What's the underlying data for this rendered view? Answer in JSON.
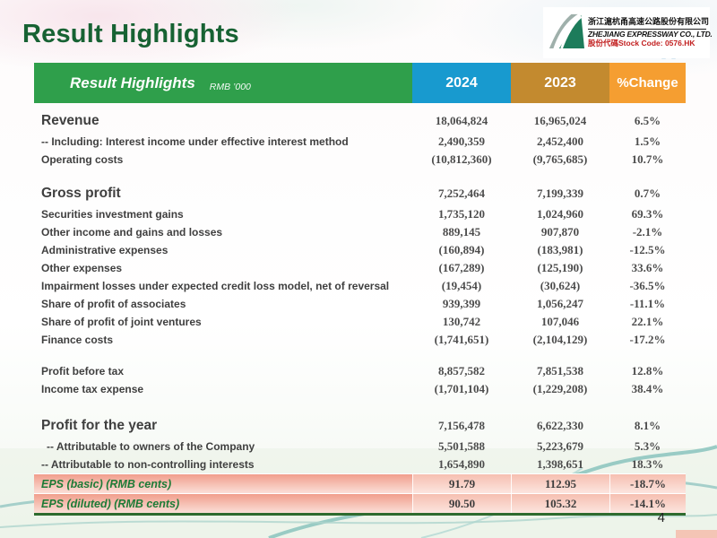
{
  "slide": {
    "title": "Result Highlights",
    "page_number": "4"
  },
  "logo": {
    "company_name_zh": "浙江滬杭甬高速公路股份有限公司",
    "company_name_en": "ZHEJIANG EXPRESSWAY CO., LTD.",
    "stock_code_line": "股份代碼Stock Code: 0576.HK"
  },
  "table": {
    "header": {
      "title": "Result Highlights",
      "unit": "RMB ’000",
      "col_2024": "2024",
      "col_2023": "2023",
      "col_change": "%Change"
    },
    "colors": {
      "header_green": "#2f9f4b",
      "col_2024_blue": "#189acf",
      "col_2023_ochre": "#c38a2f",
      "col_change_orange": "#f59e31",
      "title_green": "#176233",
      "eps_label_green": "#1e7b37",
      "eps_row_salmon": "#f19e8c",
      "bottom_line_green": "#2e6b2f",
      "stock_code_red": "#c22020"
    },
    "rows": [
      {
        "label": "Revenue",
        "v2024": "18,064,824",
        "v2023": "16,965,024",
        "change": "6.5%",
        "type": "big"
      },
      {
        "label": "-- Including: Interest income under effective interest method",
        "v2024": "2,490,359",
        "v2023": "2,452,400",
        "change": "1.5%",
        "type": "normal"
      },
      {
        "label": "Operating costs",
        "v2024": "(10,812,360)",
        "v2023": "(9,765,685)",
        "change": "10.7%",
        "type": "normal"
      },
      {
        "label": "Gross profit",
        "v2024": "7,252,464",
        "v2023": "7,199,339",
        "change": "0.7%",
        "type": "big",
        "gap_before": true
      },
      {
        "label": "Securities investment gains",
        "v2024": "1,735,120",
        "v2023": "1,024,960",
        "change": "69.3%",
        "type": "normal"
      },
      {
        "label": "Other income and gains and losses",
        "v2024": "889,145",
        "v2023": "907,870",
        "change": "-2.1%",
        "type": "normal"
      },
      {
        "label": "Administrative expenses",
        "v2024": "(160,894)",
        "v2023": "(183,981)",
        "change": "-12.5%",
        "type": "normal"
      },
      {
        "label": "Other expenses",
        "v2024": "(167,289)",
        "v2023": "(125,190)",
        "change": "33.6%",
        "type": "normal"
      },
      {
        "label": "Impairment losses under expected credit loss model, net of reversal",
        "v2024": "(19,454)",
        "v2023": "(30,624)",
        "change": "-36.5%",
        "type": "normal"
      },
      {
        "label": "Share of profit of associates",
        "v2024": "939,399",
        "v2023": "1,056,247",
        "change": "-11.1%",
        "type": "normal"
      },
      {
        "label": "Share of profit of  joint ventures",
        "v2024": "130,742",
        "v2023": "107,046",
        "change": "22.1%",
        "type": "normal"
      },
      {
        "label": "Finance costs",
        "v2024": "(1,741,651)",
        "v2023": "(2,104,129)",
        "change": "-17.2%",
        "type": "normal"
      },
      {
        "label": "Profit before tax",
        "v2024": "8,857,582",
        "v2023": "7,851,538",
        "change": "12.8%",
        "type": "normal",
        "gap_before": true
      },
      {
        "label": "Income tax expense",
        "v2024": "(1,701,104)",
        "v2023": "(1,229,208)",
        "change": "38.4%",
        "type": "normal"
      },
      {
        "label": "Profit for the year",
        "v2024": "7,156,478",
        "v2023": "6,622,330",
        "change": "8.1%",
        "type": "big",
        "gap_before": true,
        "gap_large": true
      },
      {
        "label": "-- Attributable to owners of the Company",
        "v2024": "5,501,588",
        "v2023": "5,223,679",
        "change": "5.3%",
        "type": "normal",
        "indent": true
      },
      {
        "label": "-- Attributable to non-controlling interests",
        "v2024": "1,654,890",
        "v2023": "1,398,651",
        "change": "18.3%",
        "type": "normal"
      },
      {
        "label": "EPS (basic) (RMB cents)",
        "v2024": "91.79",
        "v2023": "112.95",
        "change": "-18.7%",
        "type": "eps"
      },
      {
        "label": "EPS (diluted) (RMB cents)",
        "v2024": "90.50",
        "v2023": "105.32",
        "change": "-14.1%",
        "type": "eps"
      }
    ]
  }
}
